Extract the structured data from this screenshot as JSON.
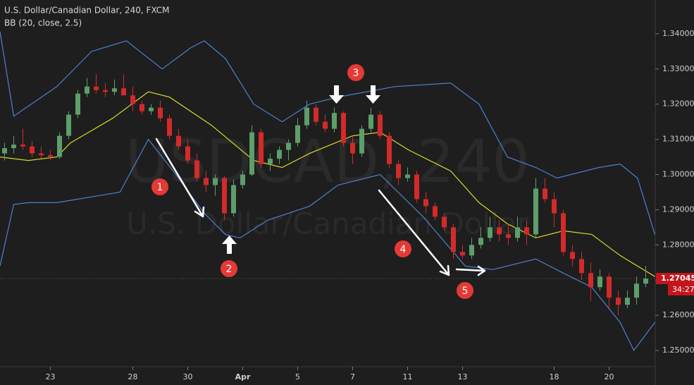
{
  "chart_data": {
    "type": "candlestick",
    "title": "U.S. Dollar/Canadian Dollar, 240, FXCM",
    "indicator": "BB (20, close, 2.5)",
    "watermark": "USDCAD, 240",
    "watermark_subtitle": "U.S. Dollar/Canadian Dollar",
    "categories": [
      null,
      null,
      null,
      null,
      null,
      "23",
      null,
      null,
      null,
      null,
      null,
      null,
      null,
      null,
      "28",
      null,
      null,
      null,
      null,
      null,
      "30",
      null,
      null,
      null,
      null,
      null,
      "Apr",
      null,
      null,
      null,
      null,
      null,
      "5",
      null,
      null,
      null,
      null,
      null,
      "7",
      null,
      null,
      null,
      null,
      null,
      "11",
      null,
      null,
      null,
      null,
      null,
      "13",
      null,
      null,
      null,
      null,
      null,
      null,
      null,
      null,
      null,
      "18",
      null,
      null,
      null,
      null,
      null,
      "20",
      null,
      null,
      null,
      null
    ],
    "open": [
      1.306,
      1.3075,
      1.3085,
      1.308,
      1.306,
      1.3055,
      1.305,
      1.311,
      1.317,
      1.323,
      1.325,
      1.324,
      1.3235,
      1.3245,
      1.3225,
      1.32,
      1.318,
      1.319,
      1.316,
      1.311,
      1.308,
      1.304,
      1.299,
      1.297,
      1.299,
      1.289,
      1.297,
      1.3,
      1.312,
      1.303,
      1.3045,
      1.307,
      1.309,
      1.314,
      1.319,
      1.315,
      1.313,
      1.3175,
      1.309,
      1.306,
      1.313,
      1.317,
      1.311,
      1.303,
      1.299,
      1.3,
      1.293,
      1.291,
      1.288,
      1.285,
      1.278,
      1.277,
      1.28,
      1.282,
      1.285,
      1.283,
      1.282,
      1.285,
      1.283,
      1.296,
      1.293,
      1.289,
      1.278,
      1.276,
      1.272,
      1.268,
      1.271,
      1.265,
      1.263,
      1.265,
      1.269
    ],
    "high": [
      1.309,
      1.311,
      1.313,
      1.3095,
      1.308,
      1.307,
      1.312,
      1.318,
      1.324,
      1.3275,
      1.3285,
      1.326,
      1.327,
      1.3285,
      1.325,
      1.321,
      1.32,
      1.321,
      1.317,
      1.313,
      1.31,
      1.306,
      1.301,
      1.3,
      1.2995,
      1.2985,
      1.301,
      1.314,
      1.313,
      1.306,
      1.308,
      1.31,
      1.316,
      1.321,
      1.32,
      1.317,
      1.319,
      1.318,
      1.311,
      1.314,
      1.319,
      1.318,
      1.312,
      1.304,
      1.302,
      1.301,
      1.295,
      1.292,
      1.289,
      1.286,
      1.28,
      1.282,
      1.285,
      1.288,
      1.287,
      1.286,
      1.288,
      1.287,
      1.299,
      1.299,
      1.295,
      1.29,
      1.28,
      1.278,
      1.275,
      1.273,
      1.272,
      1.267,
      1.267,
      1.271,
      1.274
    ],
    "low": [
      1.304,
      1.306,
      1.307,
      1.305,
      1.3045,
      1.304,
      1.3045,
      1.31,
      1.316,
      1.322,
      1.323,
      1.322,
      1.3225,
      1.323,
      1.318,
      1.317,
      1.317,
      1.315,
      1.31,
      1.307,
      1.303,
      1.298,
      1.295,
      1.294,
      1.287,
      1.288,
      1.296,
      1.2995,
      1.302,
      1.301,
      1.303,
      1.304,
      1.308,
      1.313,
      1.314,
      1.312,
      1.312,
      1.308,
      1.303,
      1.305,
      1.312,
      1.31,
      1.302,
      1.297,
      1.298,
      1.292,
      1.289,
      1.287,
      1.284,
      1.276,
      1.276,
      1.276,
      1.279,
      1.281,
      1.281,
      1.28,
      1.281,
      1.28,
      1.282,
      1.292,
      1.285,
      1.277,
      1.274,
      1.27,
      1.264,
      1.267,
      1.262,
      1.26,
      1.262,
      1.263,
      1.268
    ],
    "close": [
      1.3075,
      1.3085,
      1.308,
      1.306,
      1.3055,
      1.305,
      1.311,
      1.317,
      1.323,
      1.325,
      1.324,
      1.3235,
      1.3245,
      1.3225,
      1.32,
      1.318,
      1.319,
      1.316,
      1.311,
      1.308,
      1.304,
      1.299,
      1.297,
      1.299,
      1.289,
      1.297,
      1.3,
      1.312,
      1.303,
      1.3045,
      1.307,
      1.309,
      1.314,
      1.319,
      1.315,
      1.313,
      1.3175,
      1.309,
      1.306,
      1.313,
      1.317,
      1.311,
      1.303,
      1.299,
      1.3,
      1.293,
      1.291,
      1.288,
      1.285,
      1.278,
      1.277,
      1.28,
      1.282,
      1.285,
      1.283,
      1.282,
      1.285,
      1.283,
      1.296,
      1.293,
      1.289,
      1.278,
      1.276,
      1.272,
      1.268,
      1.271,
      1.265,
      1.263,
      1.265,
      1.269,
      1.27045
    ],
    "up_color": "#5d9e6a",
    "down_color": "#d32a2a",
    "bands": [
      {
        "color": "#4f7fcf",
        "x": [
          -0.5,
          1.0,
          5.7,
          9.5,
          13.3,
          17.2,
          20.3,
          21.8,
          24.1,
          27.2,
          30.3,
          33.3,
          36.4,
          42.6,
          48.7,
          51.8,
          54.9,
          58,
          60.3,
          64.9,
          67.2,
          69.1,
          71
        ],
        "values": [
          1.3406,
          1.3166,
          1.325,
          1.335,
          1.338,
          1.33,
          1.336,
          1.338,
          1.333,
          1.32,
          1.315,
          1.32,
          1.322,
          1.325,
          1.326,
          1.32,
          1.305,
          1.302,
          1.299,
          1.302,
          1.303,
          1.299,
          1.283
        ]
      },
      {
        "color": "#d8d82a",
        "x": [
          -0.5,
          2.6,
          5.7,
          7.2,
          11.8,
          15.7,
          18,
          22.6,
          27.2,
          30.3,
          33.3,
          38,
          41,
          44.1,
          48.7,
          51.8,
          54.9,
          58,
          61,
          64.1,
          67.2,
          71
        ],
        "values": [
          1.305,
          1.304,
          1.305,
          1.309,
          1.316,
          1.3235,
          1.322,
          1.314,
          1.304,
          1.302,
          1.306,
          1.311,
          1.312,
          1.307,
          1.301,
          1.292,
          1.286,
          1.282,
          1.284,
          1.283,
          1.277,
          1.271
        ]
      },
      {
        "color": "#4f7fcf",
        "x": [
          -0.5,
          1.0,
          2.6,
          5.7,
          12.6,
          15.7,
          18.7,
          21.8,
          24.1,
          25.7,
          28.7,
          31.0,
          33.3,
          36.4,
          41.0,
          45.7,
          50.3,
          53.3,
          58,
          61,
          64.1,
          67.2,
          68.7,
          71
        ],
        "values": [
          1.274,
          1.2915,
          1.292,
          1.292,
          1.295,
          1.31,
          1.3,
          1.289,
          1.283,
          1.282,
          1.287,
          1.289,
          1.291,
          1.297,
          1.3,
          1.288,
          1.274,
          1.273,
          1.276,
          1.272,
          1.268,
          1.258,
          1.25,
          1.258
        ]
      }
    ],
    "ylim": [
      1.2454,
      1.3496
    ],
    "yticks": [
      {
        "value": 1.25,
        "label": "1.25000"
      },
      {
        "value": 1.26,
        "label": "1.26000"
      },
      {
        "value": 1.27,
        "label": "1.27000"
      },
      {
        "value": 1.28,
        "label": "1.28000"
      },
      {
        "value": 1.29,
        "label": "1.29000"
      },
      {
        "value": 1.3,
        "label": "1.30000"
      },
      {
        "value": 1.31,
        "label": "1.31000"
      },
      {
        "value": 1.32,
        "label": "1.32000"
      },
      {
        "value": 1.33,
        "label": "1.33000"
      },
      {
        "value": 1.34,
        "label": "1.34000"
      }
    ],
    "last_price": {
      "value": 1.27045,
      "label": "1.27045"
    },
    "countdown": "34:27",
    "annotations": [
      "1",
      "2",
      "3",
      "4",
      "5"
    ]
  }
}
